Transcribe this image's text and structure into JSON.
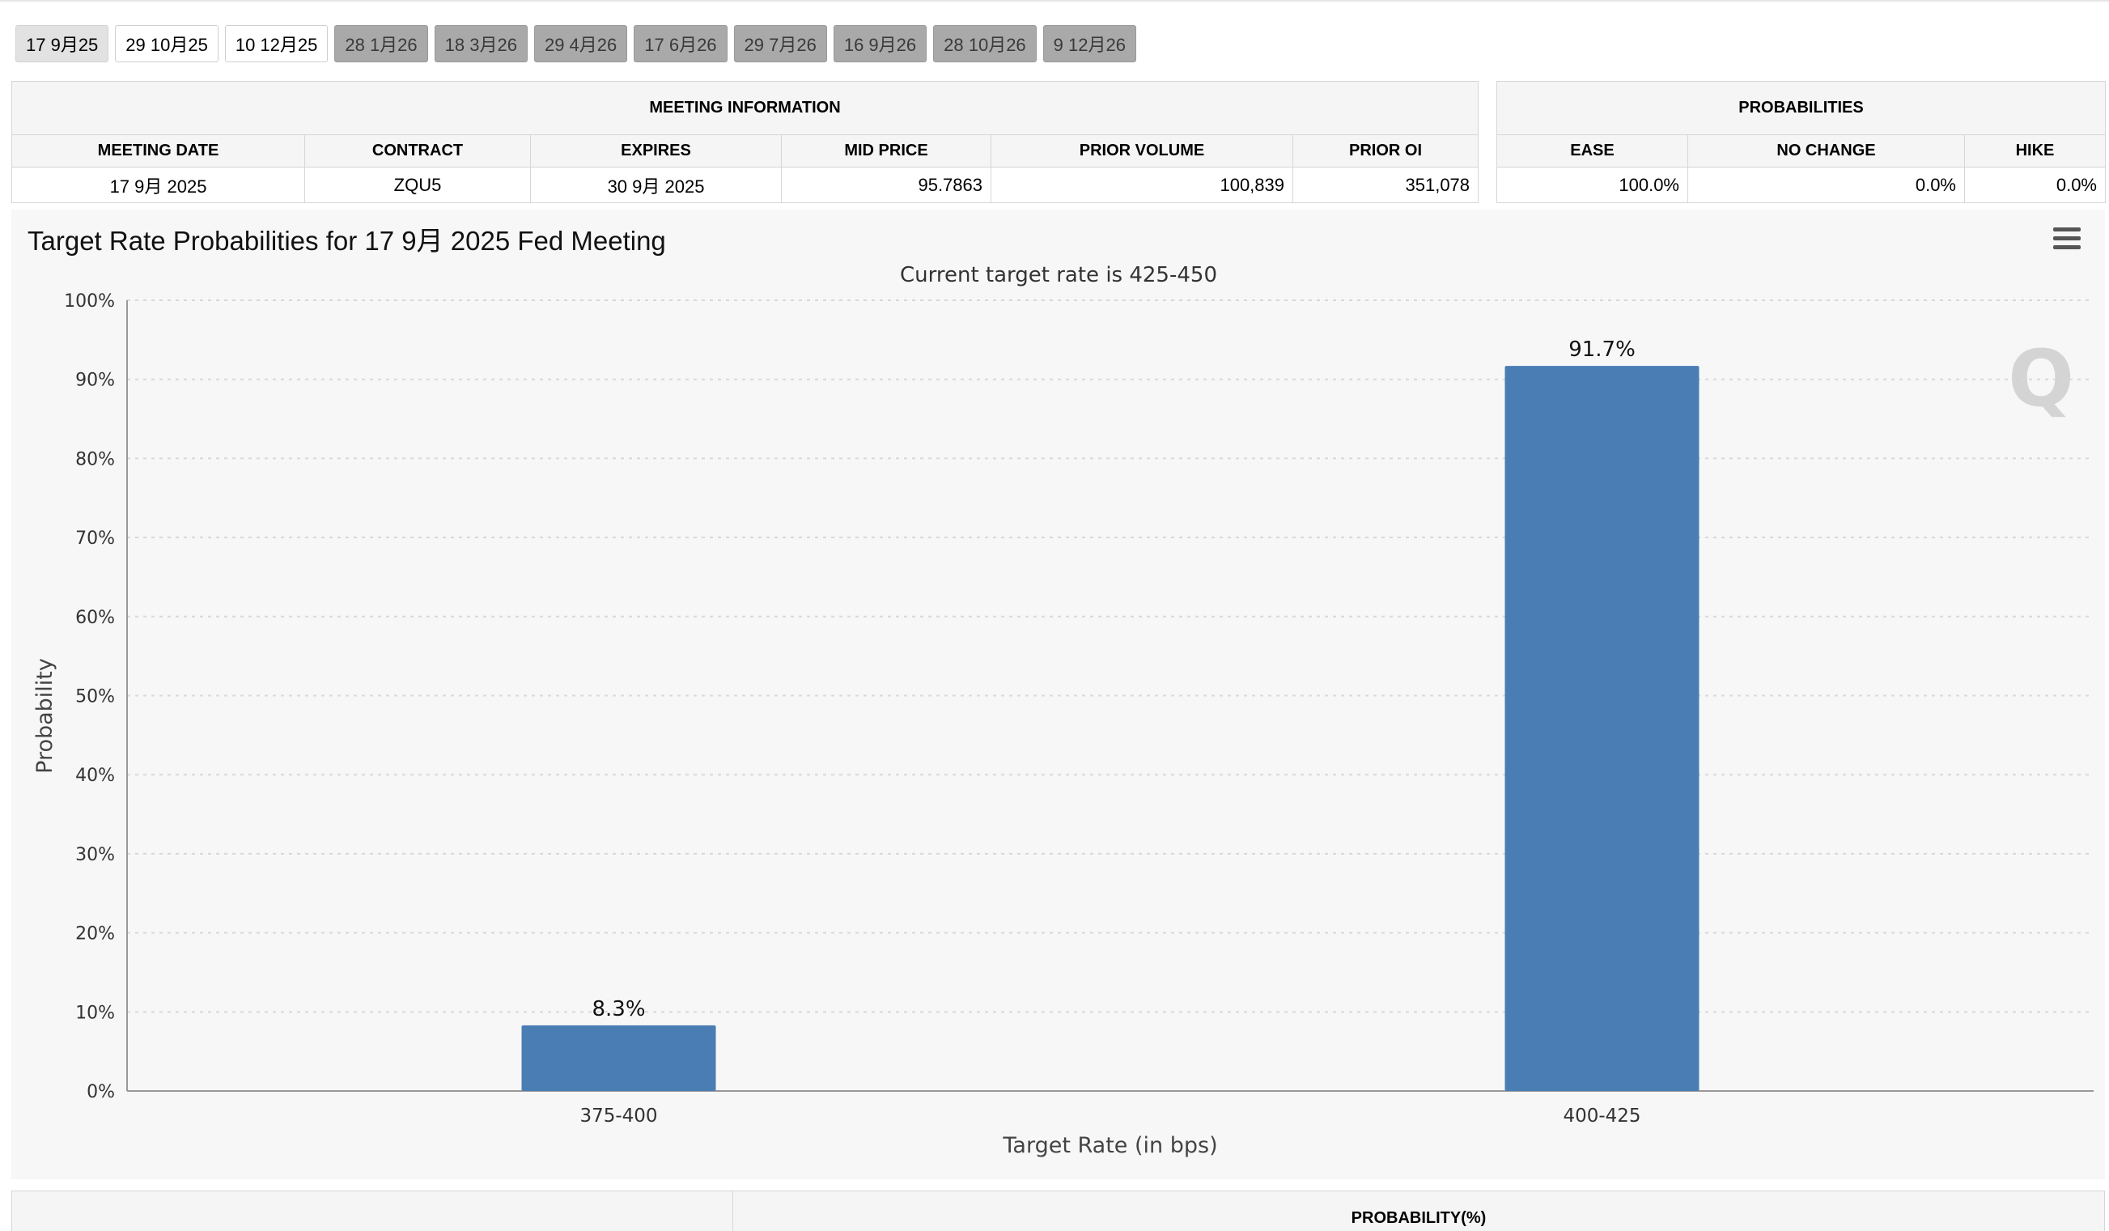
{
  "tabs": [
    {
      "label": "17 9月25",
      "state": "active"
    },
    {
      "label": "29 10月25",
      "state": "normal"
    },
    {
      "label": "10 12月25",
      "state": "normal"
    },
    {
      "label": "28 1月26",
      "state": "dim"
    },
    {
      "label": "18 3月26",
      "state": "dim"
    },
    {
      "label": "29 4月26",
      "state": "dim"
    },
    {
      "label": "17 6月26",
      "state": "dim"
    },
    {
      "label": "29 7月26",
      "state": "dim"
    },
    {
      "label": "16 9月26",
      "state": "dim"
    },
    {
      "label": "28 10月26",
      "state": "dim"
    },
    {
      "label": "9 12月26",
      "state": "dim"
    }
  ],
  "meeting_info": {
    "caption": "MEETING INFORMATION",
    "headers": [
      "MEETING DATE",
      "CONTRACT",
      "EXPIRES",
      "MID PRICE",
      "PRIOR VOLUME",
      "PRIOR OI"
    ],
    "row": [
      "17 9月 2025",
      "ZQU5",
      "30 9月 2025",
      "95.7863",
      "100,839",
      "351,078"
    ]
  },
  "probabilities": {
    "caption": "PROBABILITIES",
    "headers": [
      "EASE",
      "NO CHANGE",
      "HIKE"
    ],
    "row": [
      "100.0%",
      "0.0%",
      "0.0%"
    ]
  },
  "chart": {
    "title": "Target Rate Probabilities for 17 9月 2025 Fed Meeting",
    "menu_icon": "hamburger-menu-icon",
    "watermark_icon": "q-watermark-icon"
  },
  "chart_data": {
    "type": "bar",
    "title": "Target Rate Probabilities for 17 9月 2025 Fed Meeting",
    "subtitle": "Current target rate is 425-450",
    "xlabel": "Target Rate (in bps)",
    "ylabel": "Probability",
    "categories": [
      "375-400",
      "400-425"
    ],
    "values": [
      8.3,
      91.7
    ],
    "data_labels": [
      "8.3%",
      "91.7%"
    ],
    "ylim": [
      0,
      100
    ],
    "yticks": [
      0,
      10,
      20,
      30,
      40,
      50,
      60,
      70,
      80,
      90,
      100
    ],
    "ytick_labels": [
      "0%",
      "10%",
      "20%",
      "30%",
      "40%",
      "50%",
      "60%",
      "70%",
      "80%",
      "90%",
      "100%"
    ],
    "grid": true,
    "bar_color": "#4a7db4"
  },
  "bottom_table": {
    "header": "PROBABILITY(%)"
  }
}
